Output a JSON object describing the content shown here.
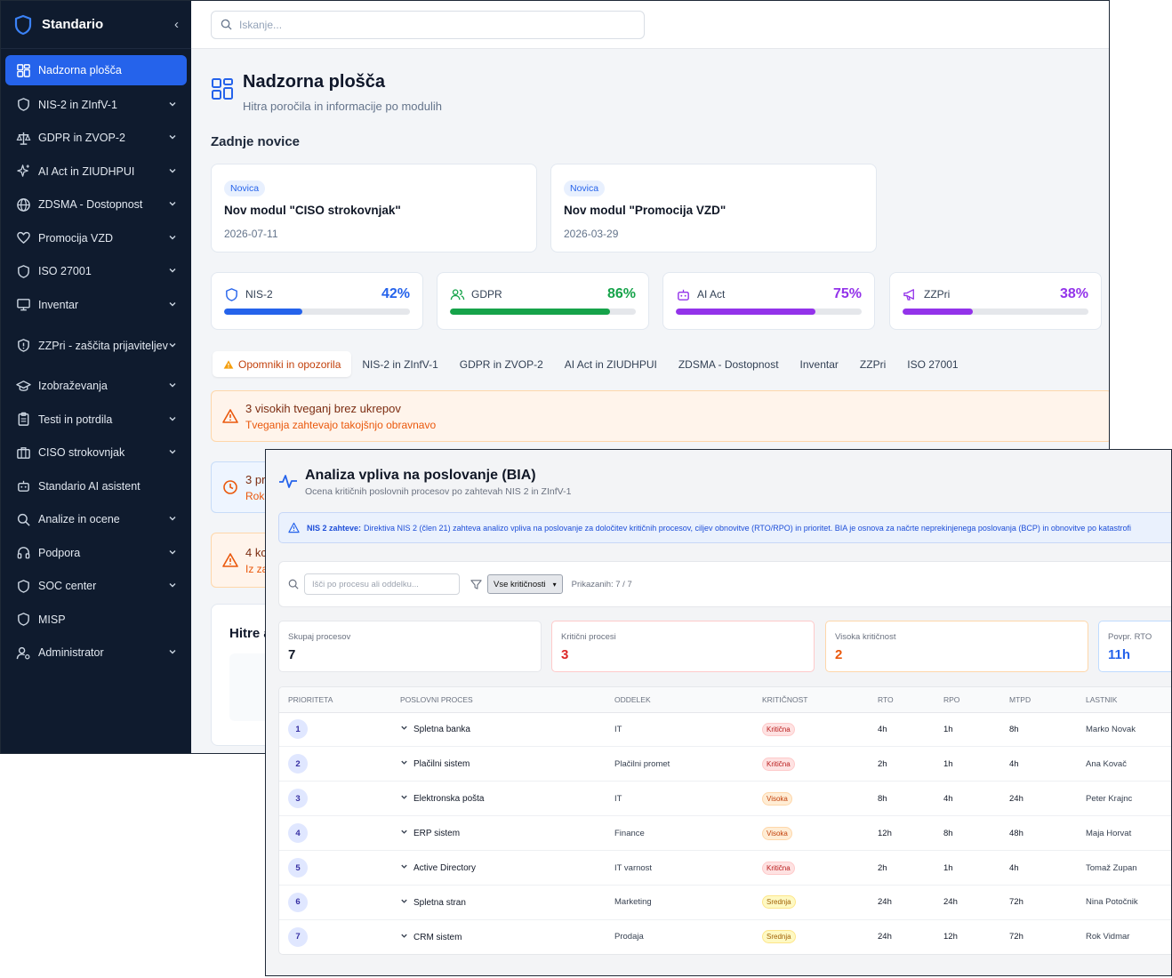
{
  "sidebar": {
    "brand": "Standario",
    "items": [
      {
        "label": "Nadzorna plošča",
        "icon": "dashboard-grid-icon",
        "active": true,
        "chevron": false
      },
      {
        "label": "NIS-2 in ZInfV-1",
        "icon": "shield-icon",
        "chevron": true
      },
      {
        "label": "GDPR in ZVOP-2",
        "icon": "scale-icon",
        "chevron": true
      },
      {
        "label": "AI Act in ZIUDHPUI",
        "icon": "sparkles-icon",
        "chevron": true
      },
      {
        "label": "ZDSMA - Dostopnost",
        "icon": "globe-icon",
        "chevron": true
      },
      {
        "label": "Promocija VZD",
        "icon": "heart-icon",
        "chevron": true
      },
      {
        "label": "ISO 27001",
        "icon": "shield-icon",
        "chevron": true
      },
      {
        "label": "Inventar",
        "icon": "monitor-icon",
        "chevron": true
      },
      {
        "label": "ZZPri - zaščita prijaviteljev",
        "icon": "shield-alert-icon",
        "chevron": true,
        "tall": true
      },
      {
        "label": "Izobraževanja",
        "icon": "graduation-cap-icon",
        "chevron": true
      },
      {
        "label": "Testi in potrdila",
        "icon": "clipboard-icon",
        "chevron": true
      },
      {
        "label": "CISO strokovnjak",
        "icon": "briefcase-icon",
        "chevron": true
      },
      {
        "label": "Standario AI asistent",
        "icon": "bot-icon",
        "chevron": false
      },
      {
        "label": "Analize in ocene",
        "icon": "search-icon",
        "chevron": true
      },
      {
        "label": "Podpora",
        "icon": "headphones-icon",
        "chevron": true
      },
      {
        "label": "SOC center",
        "icon": "shield-icon",
        "chevron": true
      },
      {
        "label": "MISP",
        "icon": "shield-icon",
        "chevron": false
      },
      {
        "label": "Administrator",
        "icon": "user-cog-icon",
        "chevron": true
      }
    ]
  },
  "search": {
    "placeholder": "Iskanje..."
  },
  "page": {
    "title": "Nadzorna plošča",
    "subtitle": "Hitra poročila in informacije po modulih"
  },
  "news": {
    "section_title": "Zadnje novice",
    "items": [
      {
        "badge": "Novica",
        "title": "Nov modul \"CISO strokovnjak\"",
        "date": "2026-07-11"
      },
      {
        "badge": "Novica",
        "title": "Nov modul \"Promocija VZD\"",
        "date": "2026-03-29"
      }
    ]
  },
  "stats": [
    {
      "name": "NIS-2",
      "percent": "42%",
      "value": 42,
      "color": "#2563eb",
      "icon": "shield-icon"
    },
    {
      "name": "GDPR",
      "percent": "86%",
      "value": 86,
      "color": "#16a34a",
      "icon": "users-icon"
    },
    {
      "name": "AI Act",
      "percent": "75%",
      "value": 75,
      "color": "#9333ea",
      "icon": "bot-icon"
    },
    {
      "name": "ZZPri",
      "percent": "38%",
      "value": 38,
      "color": "#9333ea",
      "icon": "megaphone-icon"
    }
  ],
  "tabs": [
    "Opomniki in opozorila",
    "NIS-2 in ZInfV-1",
    "GDPR in ZVOP-2",
    "AI Act in ZIUDHPUI",
    "ZDSMA - Dostopnost",
    "Inventar",
    "ZZPri",
    "ISO 27001"
  ],
  "alerts": [
    {
      "title": "3 visokih tveganj brez ukrepov",
      "desc": "Tveganja zahtevajo takojšnjo obravnavo",
      "icon": "warning-triangle-icon"
    },
    {
      "title": "3 pr",
      "desc": "Rok",
      "icon": "clock-icon"
    },
    {
      "title": "4 kc",
      "desc": "Iz za",
      "icon": "warning-triangle-icon"
    }
  ],
  "quick": {
    "title": "Hitre a"
  },
  "bia": {
    "title": "Analiza vpliva na poslovanje (BIA)",
    "subtitle": "Ocena kritičnih poslovnih procesov po zahtevah NIS 2 in ZInfV-1",
    "info_label": "NIS 2 zahteve:",
    "info_text": "Direktiva NIS 2 (člen 21) zahteva analizo vpliva na poslovanje za določitev kritičnih procesov, ciljev obnovitve (RTO/RPO) in prioritet. BIA je osnova za načrte neprekinjenega poslovanja (BCP) in obnovitve po katastrofi",
    "filter_placeholder": "Išči po procesu ali oddelku...",
    "filter_select": "Vse kritičnosti",
    "shown": "Prikazanih: 7 / 7",
    "kpis": [
      {
        "label": "Skupaj procesov",
        "value": "7",
        "color": "#111827",
        "border": "#e5e7eb"
      },
      {
        "label": "Kritični procesi",
        "value": "3",
        "color": "#dc2626",
        "border": "#fecaca"
      },
      {
        "label": "Visoka kritičnost",
        "value": "2",
        "color": "#ea580c",
        "border": "#fed7aa"
      },
      {
        "label": "Povpr. RTO",
        "value": "11h",
        "color": "#2563eb",
        "border": "#bfdbfe"
      }
    ],
    "columns": [
      "Prioriteta",
      "Poslovni proces",
      "Oddelek",
      "Kritičnost",
      "RTO",
      "RPO",
      "MTPD",
      "Lastnik"
    ],
    "rows": [
      {
        "p": "1",
        "proc": "Spletna banka",
        "dept": "IT",
        "crit": "Kritična",
        "lvl": "k",
        "rto": "4h",
        "rpo": "1h",
        "mtpd": "8h",
        "own": "Marko Novak"
      },
      {
        "p": "2",
        "proc": "Plačilni sistem",
        "dept": "Plačilni promet",
        "crit": "Kritična",
        "lvl": "k",
        "rto": "2h",
        "rpo": "1h",
        "mtpd": "4h",
        "own": "Ana Kovač"
      },
      {
        "p": "3",
        "proc": "Elektronska pošta",
        "dept": "IT",
        "crit": "Visoka",
        "lvl": "v",
        "rto": "8h",
        "rpo": "4h",
        "mtpd": "24h",
        "own": "Peter Krajnc"
      },
      {
        "p": "4",
        "proc": "ERP sistem",
        "dept": "Finance",
        "crit": "Visoka",
        "lvl": "v",
        "rto": "12h",
        "rpo": "8h",
        "mtpd": "48h",
        "own": "Maja Horvat"
      },
      {
        "p": "5",
        "proc": "Active Directory",
        "dept": "IT varnost",
        "crit": "Kritična",
        "lvl": "k",
        "rto": "2h",
        "rpo": "1h",
        "mtpd": "4h",
        "own": "Tomaž Zupan"
      },
      {
        "p": "6",
        "proc": "Spletna stran",
        "dept": "Marketing",
        "crit": "Srednja",
        "lvl": "s",
        "rto": "24h",
        "rpo": "24h",
        "mtpd": "72h",
        "own": "Nina Potočnik"
      },
      {
        "p": "7",
        "proc": "CRM sistem",
        "dept": "Prodaja",
        "crit": "Srednja",
        "lvl": "s",
        "rto": "24h",
        "rpo": "12h",
        "mtpd": "72h",
        "own": "Rok Vidmar"
      }
    ]
  }
}
